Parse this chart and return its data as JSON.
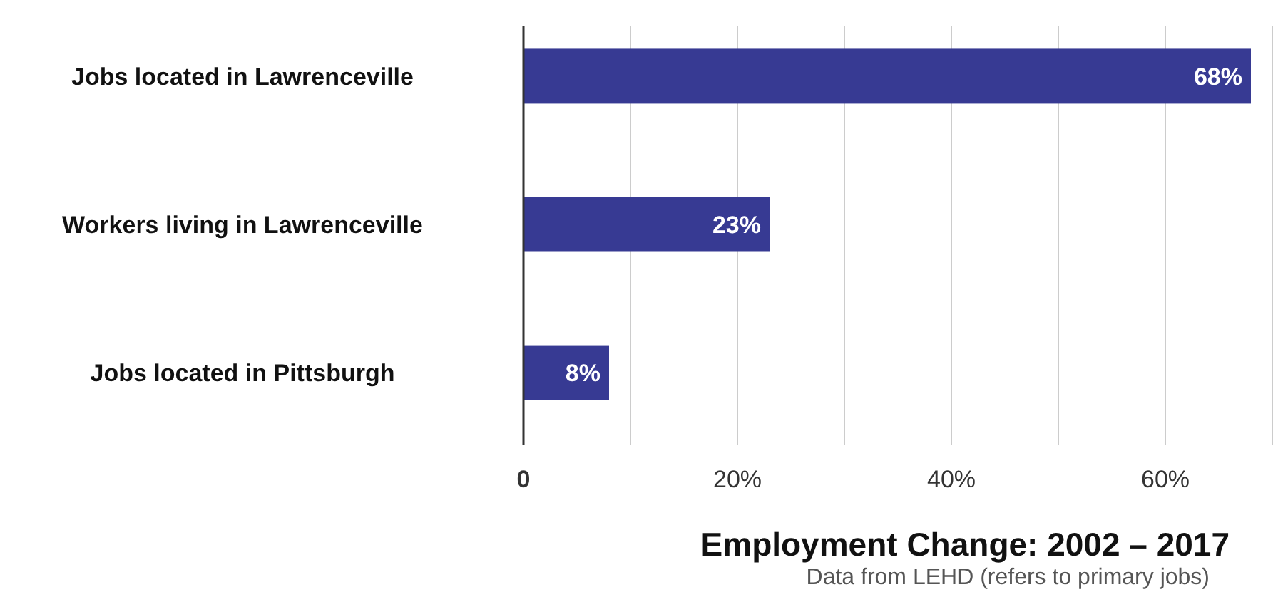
{
  "chart_data": {
    "type": "bar",
    "orientation": "horizontal",
    "xlabel": "Employment Change: 2002 – 2017",
    "annotations": [
      "Data from LEHD (refers to primary jobs)"
    ],
    "categories": [
      "Jobs located in Lawrenceville",
      "Workers living in Lawrenceville",
      "Jobs located in Pittsburgh"
    ],
    "values": [
      68,
      23,
      8
    ],
    "value_labels": [
      "68%",
      "23%",
      "8%"
    ],
    "color": "#373a93",
    "xlim": [
      0,
      70
    ],
    "xticks": [
      {
        "value": 0,
        "label": "0"
      },
      {
        "value": 10,
        "label": null
      },
      {
        "value": 20,
        "label": "20%"
      },
      {
        "value": 30,
        "label": null
      },
      {
        "value": 40,
        "label": "40%"
      },
      {
        "value": 50,
        "label": null
      },
      {
        "value": 60,
        "label": "60%"
      },
      {
        "value": 70,
        "label": null
      }
    ],
    "grid": "x"
  }
}
